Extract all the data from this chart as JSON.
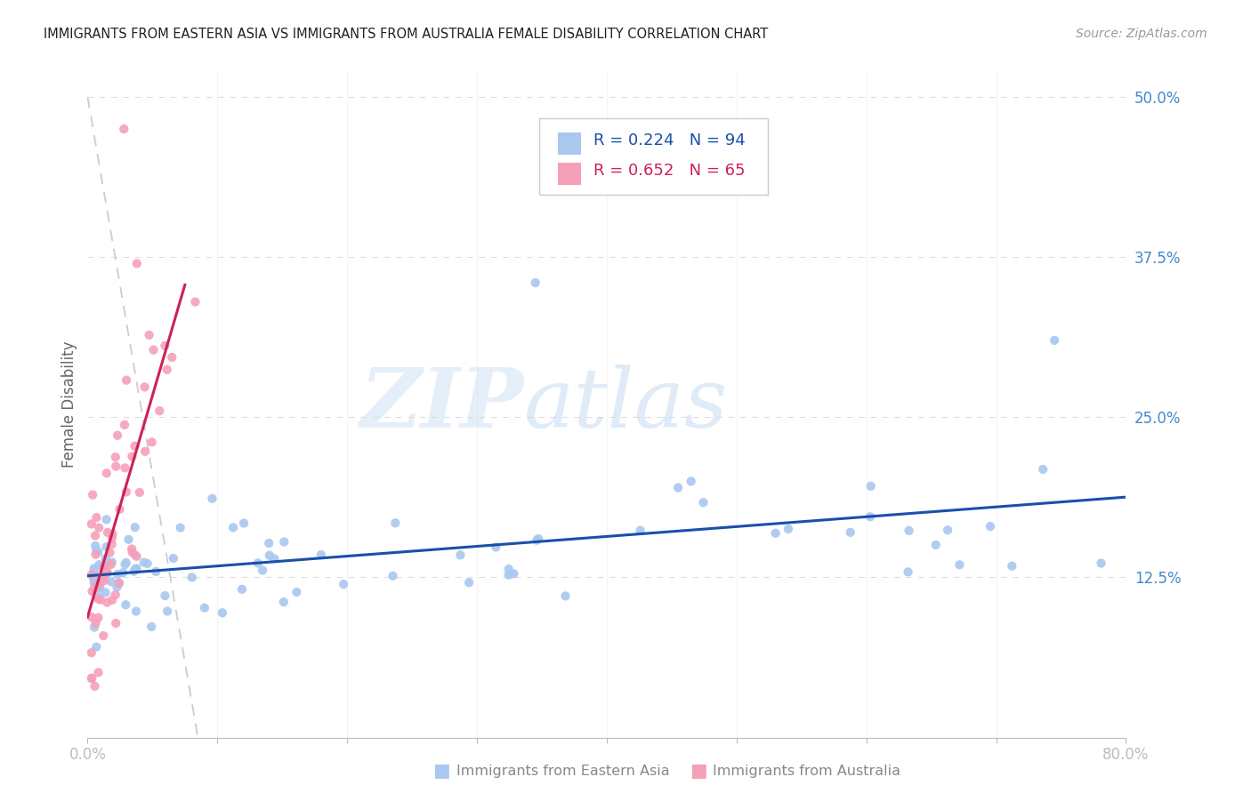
{
  "title": "IMMIGRANTS FROM EASTERN ASIA VS IMMIGRANTS FROM AUSTRALIA FEMALE DISABILITY CORRELATION CHART",
  "source": "Source: ZipAtlas.com",
  "ylabel": "Female Disability",
  "xlabel_blue": "Immigrants from Eastern Asia",
  "xlabel_pink": "Immigrants from Australia",
  "legend_blue_R": "R = 0.224",
  "legend_blue_N": "N = 94",
  "legend_pink_R": "R = 0.652",
  "legend_pink_N": "N = 65",
  "watermark_zip": "ZIP",
  "watermark_atlas": "atlas",
  "xlim": [
    0.0,
    0.8
  ],
  "ylim": [
    0.0,
    0.52
  ],
  "yticks": [
    0.0,
    0.125,
    0.25,
    0.375,
    0.5
  ],
  "ytick_labels": [
    "",
    "12.5%",
    "25.0%",
    "37.5%",
    "50.0%"
  ],
  "xtick_labels": [
    "0.0%",
    "",
    "",
    "",
    "",
    "",
    "",
    "",
    "80.0%"
  ],
  "blue_color": "#a8c8f0",
  "blue_line_color": "#1a4faa",
  "pink_color": "#f5a0b8",
  "pink_line_color": "#cc2255",
  "grid_color": "#dddddd",
  "title_color": "#222222",
  "axis_label_color": "#666666",
  "tick_label_color": "#4488cc",
  "source_color": "#999999"
}
